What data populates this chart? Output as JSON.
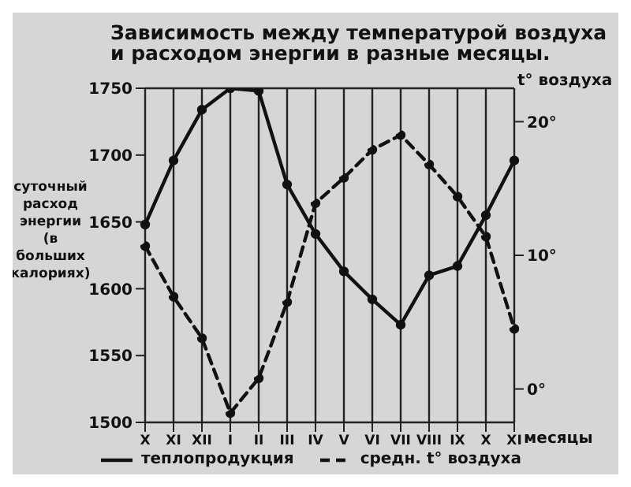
{
  "chart_data": {
    "type": "line",
    "title": "Зависимость между температурой воздуха\nи расходом энергии в разные месяцы.",
    "xlabel": "месяцы",
    "ylabel": "суточный расход энергии (в больших калориях)",
    "y2label": "t° воздуха",
    "categories": [
      "X",
      "XI",
      "XII",
      "I",
      "II",
      "III",
      "IV",
      "V",
      "VI",
      "VII",
      "VIII",
      "IX",
      "X",
      "XI"
    ],
    "series": [
      {
        "name": "теплопродукция",
        "color": "#111111",
        "line_style": "solid",
        "values": [
          1648,
          1696,
          1734,
          1750,
          1748,
          1678,
          1641,
          1613,
          1592,
          1573,
          1610,
          1617,
          1655,
          1696
        ]
      },
      {
        "name": "средн. t° воздуха",
        "color": "#111111",
        "line_style": "dashed",
        "axis": "y2",
        "values": [
          10.7,
          6.9,
          3.8,
          -1.8,
          0.8,
          6.5,
          13.9,
          15.8,
          17.9,
          19,
          16.8,
          14.4,
          11.4,
          4.5
        ]
      }
    ],
    "ylim": [
      1500,
      1750
    ],
    "yticks": [
      1500,
      1550,
      1600,
      1650,
      1700,
      1750
    ],
    "y2lim": [
      -2.5,
      22.5
    ],
    "y2ticks": [
      {
        "value": 0,
        "label": "0°"
      },
      {
        "value": 10,
        "label": "10°"
      },
      {
        "value": 20,
        "label": "20°"
      }
    ],
    "grid": true,
    "legend": "bottom",
    "marker": "circle"
  }
}
